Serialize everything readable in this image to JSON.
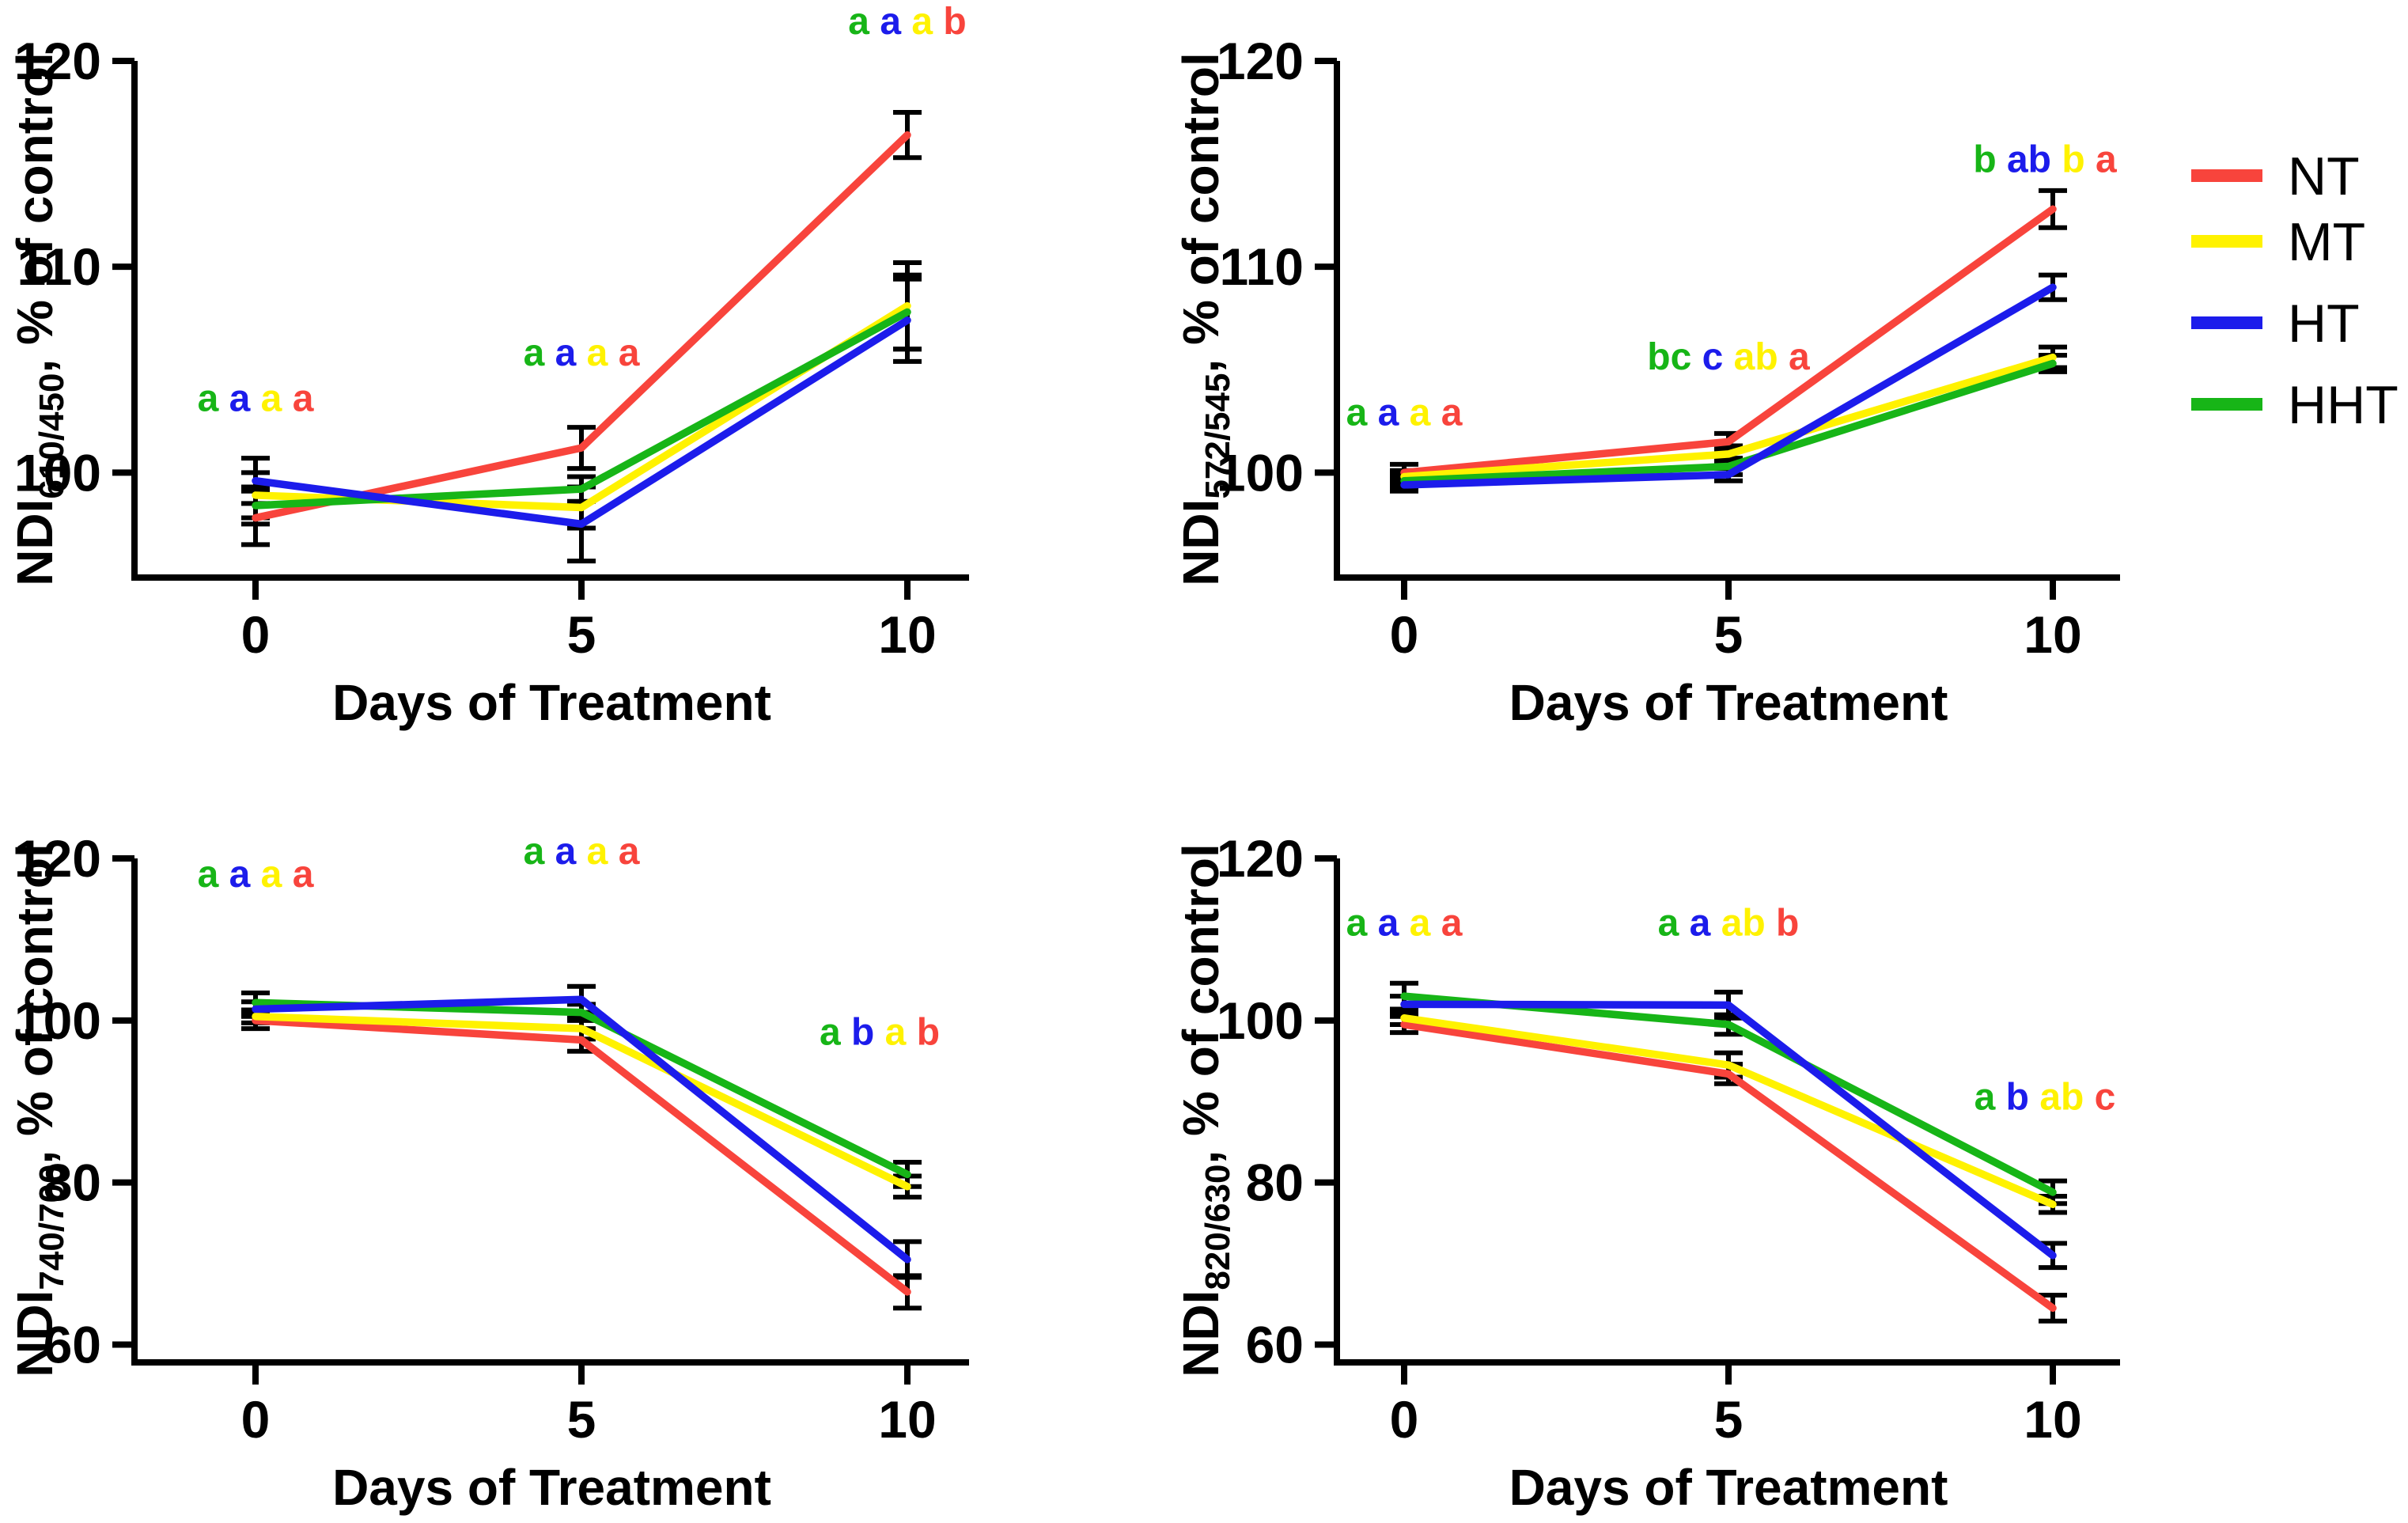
{
  "figure": {
    "background": "#ffffff",
    "xlabel": "Days of Treatment"
  },
  "colors": {
    "red": "#F8443C",
    "yellow": "#FFF200",
    "blue": "#1C1CEB",
    "green": "#17B517",
    "axis": "#000000"
  },
  "legend": {
    "items": [
      {
        "label": "NT",
        "color": "red"
      },
      {
        "label": "MT",
        "color": "yellow"
      },
      {
        "label": "HT",
        "color": "blue"
      },
      {
        "label": "HHT",
        "color": "green"
      }
    ]
  },
  "chart_data": [
    {
      "id": "ndi-610-450",
      "type": "line",
      "ylabel_prefix": "NDI",
      "ylabel_sub": "610/450",
      "ylabel_suffix": ", % of control",
      "xlabel": "Days of Treatment",
      "x": [
        0,
        5,
        10
      ],
      "x_tick_labels": [
        "0",
        "5",
        "10"
      ],
      "y_ticks": [
        120,
        110,
        100
      ],
      "ylim": [
        94.9,
        120
      ],
      "grid": false,
      "series": [
        {
          "name": "NT",
          "color": "red",
          "values": [
            97.8,
            101.2,
            116.4
          ],
          "errors": [
            1.3,
            1.0,
            1.1
          ]
        },
        {
          "name": "MT",
          "color": "yellow",
          "values": [
            98.9,
            98.3,
            108.1
          ],
          "errors": [
            1.1,
            1.0,
            2.1
          ]
        },
        {
          "name": "HT",
          "color": "blue",
          "values": [
            99.6,
            97.5,
            107.4
          ],
          "errors": [
            1.1,
            1.8,
            2.0
          ]
        },
        {
          "name": "HHT",
          "color": "green",
          "values": [
            98.4,
            99.2,
            107.8
          ],
          "errors": [
            0.9,
            0.6,
            1.8
          ]
        }
      ],
      "sig_letters": [
        {
          "day_index": 0,
          "y": 103.0,
          "dx": 0,
          "letters": [
            {
              "text": "a",
              "color": "green"
            },
            {
              "text": "a",
              "color": "blue"
            },
            {
              "text": "a",
              "color": "yellow"
            },
            {
              "text": "a",
              "color": "red"
            }
          ]
        },
        {
          "day_index": 1,
          "y": 105.2,
          "dx": 0,
          "letters": [
            {
              "text": "a",
              "color": "green"
            },
            {
              "text": "a",
              "color": "blue"
            },
            {
              "text": "a",
              "color": "yellow"
            },
            {
              "text": "a",
              "color": "red"
            }
          ]
        },
        {
          "day_index": 2,
          "y": 121.3,
          "dx": 0,
          "letters": [
            {
              "text": "a",
              "color": "green"
            },
            {
              "text": "a",
              "color": "blue"
            },
            {
              "text": "a",
              "color": "yellow"
            },
            {
              "text": "b",
              "color": "red"
            }
          ]
        }
      ]
    },
    {
      "id": "ndi-572-545",
      "type": "line",
      "ylabel_prefix": "NDI",
      "ylabel_sub": "572/545",
      "ylabel_suffix": ", % of control",
      "xlabel": "Days of Treatment",
      "x": [
        0,
        5,
        10
      ],
      "x_tick_labels": [
        "0",
        "5",
        "10"
      ],
      "y_ticks": [
        120,
        110,
        100
      ],
      "ylim": [
        94.9,
        120
      ],
      "grid": false,
      "series": [
        {
          "name": "NT",
          "color": "red",
          "values": [
            100.0,
            101.5,
            112.8
          ],
          "errors": [
            0.4,
            0.4,
            0.9
          ]
        },
        {
          "name": "MT",
          "color": "yellow",
          "values": [
            99.8,
            100.9,
            105.6
          ],
          "errors": [
            0.3,
            0.4,
            0.5
          ]
        },
        {
          "name": "HT",
          "color": "blue",
          "values": [
            99.4,
            99.9,
            109.0
          ],
          "errors": [
            0.3,
            0.3,
            0.6
          ]
        },
        {
          "name": "HHT",
          "color": "green",
          "values": [
            99.6,
            100.3,
            105.3
          ],
          "errors": [
            0.3,
            0.4,
            0.4
          ]
        }
      ],
      "sig_letters": [
        {
          "day_index": 0,
          "y": 102.3,
          "dx": 0,
          "letters": [
            {
              "text": "a",
              "color": "green"
            },
            {
              "text": "a",
              "color": "blue"
            },
            {
              "text": "a",
              "color": "yellow"
            },
            {
              "text": "a",
              "color": "red"
            }
          ]
        },
        {
          "day_index": 1,
          "y": 105.0,
          "dx": 0,
          "letters": [
            {
              "text": "bc",
              "color": "green"
            },
            {
              "text": "c",
              "color": "blue"
            },
            {
              "text": "ab",
              "color": "yellow"
            },
            {
              "text": "a",
              "color": "red"
            }
          ]
        },
        {
          "day_index": 2,
          "y": 114.6,
          "dx": -10,
          "letters": [
            {
              "text": "b",
              "color": "green"
            },
            {
              "text": "ab",
              "color": "blue"
            },
            {
              "text": "b",
              "color": "yellow"
            },
            {
              "text": "a",
              "color": "red"
            }
          ]
        }
      ]
    },
    {
      "id": "ndi-740-700",
      "type": "line",
      "ylabel_prefix": "NDI",
      "ylabel_sub": "740/700",
      "ylabel_suffix": ", % of control",
      "xlabel": "Days of Treatment",
      "x": [
        0,
        5,
        10
      ],
      "x_tick_labels": [
        "0",
        "5",
        "10"
      ],
      "y_ticks": [
        120,
        100,
        80,
        60
      ],
      "ylim": [
        57.8,
        120
      ],
      "grid": false,
      "series": [
        {
          "name": "NT",
          "color": "red",
          "values": [
            100.0,
            97.6,
            66.5
          ],
          "errors": [
            1.0,
            1.4,
            2.0
          ]
        },
        {
          "name": "MT",
          "color": "yellow",
          "values": [
            100.5,
            99.0,
            79.5
          ],
          "errors": [
            0.8,
            1.3,
            1.3
          ]
        },
        {
          "name": "HT",
          "color": "blue",
          "values": [
            101.4,
            102.6,
            70.5
          ],
          "errors": [
            0.9,
            1.6,
            2.2
          ]
        },
        {
          "name": "HHT",
          "color": "green",
          "values": [
            102.2,
            101.0,
            81.0
          ],
          "errors": [
            1.2,
            1.0,
            1.5
          ]
        }
      ],
      "sig_letters": [
        {
          "day_index": 0,
          "y": 116.5,
          "dx": 0,
          "letters": [
            {
              "text": "a",
              "color": "green"
            },
            {
              "text": "a",
              "color": "blue"
            },
            {
              "text": "a",
              "color": "yellow"
            },
            {
              "text": "a",
              "color": "red"
            }
          ]
        },
        {
          "day_index": 1,
          "y": 119.3,
          "dx": 0,
          "letters": [
            {
              "text": "a",
              "color": "green"
            },
            {
              "text": "a",
              "color": "blue"
            },
            {
              "text": "a",
              "color": "yellow"
            },
            {
              "text": "a",
              "color": "red"
            }
          ]
        },
        {
          "day_index": 2,
          "y": 97.0,
          "dx": -35,
          "letters": [
            {
              "text": "a",
              "color": "green"
            },
            {
              "text": "b",
              "color": "blue"
            },
            {
              "text": "a",
              "color": "yellow"
            },
            {
              "text": "b",
              "color": "red"
            }
          ]
        }
      ]
    },
    {
      "id": "ndi-820-630",
      "type": "line",
      "ylabel_prefix": "NDI",
      "ylabel_sub": "820/630",
      "ylabel_suffix": ", % of control",
      "xlabel": "Days of Treatment",
      "x": [
        0,
        5,
        10
      ],
      "x_tick_labels": [
        "0",
        "5",
        "10"
      ],
      "y_ticks": [
        120,
        100,
        80,
        60
      ],
      "ylim": [
        57.8,
        120
      ],
      "grid": false,
      "series": [
        {
          "name": "NT",
          "color": "red",
          "values": [
            99.5,
            93.4,
            64.5
          ],
          "errors": [
            1.0,
            1.2,
            1.6
          ]
        },
        {
          "name": "MT",
          "color": "yellow",
          "values": [
            100.3,
            94.5,
            77.3
          ],
          "errors": [
            0.8,
            1.5,
            1.0
          ]
        },
        {
          "name": "HT",
          "color": "blue",
          "values": [
            102.0,
            101.9,
            71.0
          ],
          "errors": [
            1.0,
            1.6,
            1.5
          ]
        },
        {
          "name": "HHT",
          "color": "green",
          "values": [
            103.0,
            99.5,
            78.8
          ],
          "errors": [
            1.6,
            1.2,
            1.4
          ]
        }
      ],
      "sig_letters": [
        {
          "day_index": 0,
          "y": 110.5,
          "dx": 0,
          "letters": [
            {
              "text": "a",
              "color": "green"
            },
            {
              "text": "a",
              "color": "blue"
            },
            {
              "text": "a",
              "color": "yellow"
            },
            {
              "text": "a",
              "color": "red"
            }
          ]
        },
        {
          "day_index": 1,
          "y": 110.5,
          "dx": 0,
          "letters": [
            {
              "text": "a",
              "color": "green"
            },
            {
              "text": "a",
              "color": "blue"
            },
            {
              "text": "ab",
              "color": "yellow"
            },
            {
              "text": "b",
              "color": "red"
            }
          ]
        },
        {
          "day_index": 2,
          "y": 89.0,
          "dx": -10,
          "letters": [
            {
              "text": "a",
              "color": "green"
            },
            {
              "text": "b",
              "color": "blue"
            },
            {
              "text": "ab",
              "color": "yellow"
            },
            {
              "text": "c",
              "color": "red"
            }
          ]
        }
      ]
    }
  ]
}
